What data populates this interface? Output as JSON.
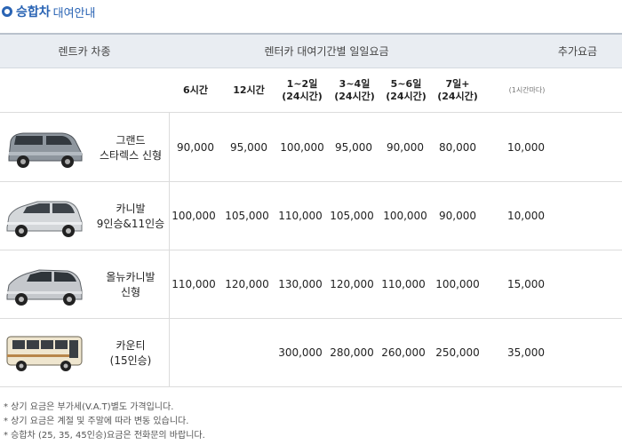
{
  "title": {
    "main": "승합차",
    "sub": "대여안내"
  },
  "header": {
    "car_type": "렌트카 차종",
    "rate": "렌터카 대여기간별 일일요금",
    "extra": "추가요금"
  },
  "periods": [
    {
      "line1": "6시간",
      "line2": ""
    },
    {
      "line1": "12시간",
      "line2": ""
    },
    {
      "line1": "1~2일",
      "line2": "(24시간)"
    },
    {
      "line1": "3~4일",
      "line2": "(24시간)"
    },
    {
      "line1": "5~6일",
      "line2": "(24시간)"
    },
    {
      "line1": "7일+",
      "line2": "(24시간)"
    }
  ],
  "extra_unit": "(1시간마다)",
  "rows": [
    {
      "name1": "그랜드",
      "name2": "스타렉스 신형",
      "prices": [
        "90,000",
        "95,000",
        "100,000",
        "95,000",
        "90,000",
        "80,000"
      ],
      "extra": "10,000"
    },
    {
      "name1": "카니발",
      "name2": "9인승&11인승",
      "prices": [
        "100,000",
        "105,000",
        "110,000",
        "105,000",
        "100,000",
        "90,000"
      ],
      "extra": "10,000"
    },
    {
      "name1": "올뉴카니발",
      "name2": "신형",
      "prices": [
        "110,000",
        "120,000",
        "130,000",
        "120,000",
        "110,000",
        "100,000"
      ],
      "extra": "15,000"
    },
    {
      "name1": "카운티",
      "name2": "(15인승)",
      "prices": [
        "",
        "",
        "300,000",
        "280,000",
        "260,000",
        "250,000"
      ],
      "extra": "35,000"
    }
  ],
  "notes": [
    "* 상기 요금은 부가세(V.A.T)별도 가격입니다.",
    "* 상기 요금은 계절 및 주말에 따라 변동 있습니다.",
    "* 승합차 (25, 35, 45인승)요금은 전화문의 바랍니다."
  ],
  "colors": {
    "accent": "#2a64b4",
    "header_bg": "#e9edf2",
    "border": "#dcdcdc"
  }
}
